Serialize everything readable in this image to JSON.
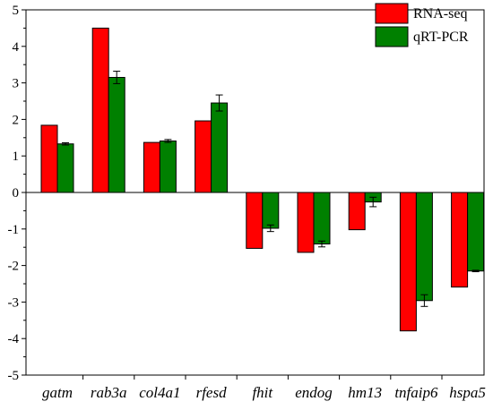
{
  "chart_data": {
    "type": "bar",
    "categories": [
      "gatm",
      "rab3a",
      "col4a1",
      "rfesd",
      "fhit",
      "endog",
      "hm13",
      "tnfaip6",
      "hspa5"
    ],
    "series": [
      {
        "name": "RNA-seq",
        "color": "#ff0000",
        "values": [
          1.84,
          4.5,
          1.37,
          1.96,
          -1.53,
          -1.64,
          -1.02,
          -3.79,
          -2.59
        ],
        "errors": null
      },
      {
        "name": "qRT-PCR",
        "color": "#008000",
        "values": [
          1.33,
          3.15,
          1.41,
          2.45,
          -0.98,
          -1.41,
          -0.26,
          -2.96,
          -2.15
        ],
        "errors": [
          0.03,
          0.17,
          0.04,
          0.22,
          0.09,
          0.08,
          0.13,
          0.16,
          0.02
        ]
      }
    ],
    "ylim": [
      -5,
      5
    ],
    "yticks": [
      "-5",
      "-4",
      "-3",
      "-2",
      "-1",
      "0",
      "1",
      "2",
      "3",
      "4",
      "5"
    ],
    "title": "",
    "xlabel": "",
    "ylabel": "",
    "legend_position": "top-right",
    "grid": false
  }
}
